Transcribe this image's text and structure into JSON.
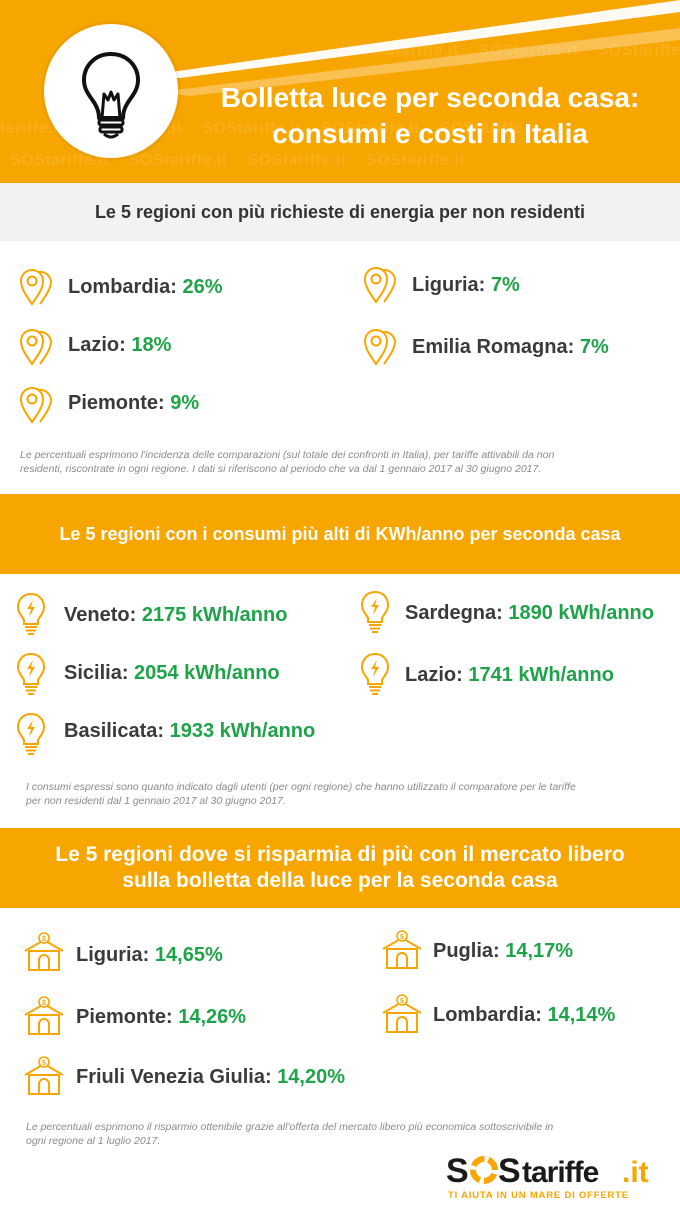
{
  "header": {
    "title_line1": "Bolletta luce per seconda casa:",
    "title_line2": "consumi e costi in Italia",
    "bulb_icon": "lightbulb-icon"
  },
  "section1": {
    "heading": "Le 5 regioni con più richieste di energia per non residenti",
    "icon": "map-pin-icon",
    "items": [
      {
        "name": "Lombardia:",
        "value": "26%"
      },
      {
        "name": "Liguria:",
        "value": "7%"
      },
      {
        "name": "Lazio:",
        "value": "18%"
      },
      {
        "name": "Emilia Romagna:",
        "value": "7%"
      },
      {
        "name": "Piemonte:",
        "value": "9%"
      }
    ],
    "note_line1": "Le percentuali esprimono l'incidenza delle comparazioni (sul totale dei confronti in Italia), per tariffe attivabili da non",
    "note_line2": "residenti, riscontrate in ogni regione. I dati si riferiscono al periodo che va dal 1 gennaio 2017 al 30 giugno 2017."
  },
  "section2": {
    "heading": "Le 5 regioni con i consumi più alti di KWh/anno per seconda casa",
    "icon": "energy-bulb-icon",
    "items": [
      {
        "name": "Veneto:",
        "value": "2175 kWh/anno"
      },
      {
        "name": "Sardegna:",
        "value": "1890 kWh/anno"
      },
      {
        "name": "Sicilia:",
        "value": "2054 kWh/anno"
      },
      {
        "name": "Lazio:",
        "value": "1741 kWh/anno"
      },
      {
        "name": "Basilicata:",
        "value": "1933 kWh/anno"
      }
    ],
    "note_line1": "I consumi espressi sono quanto indicato dagli utenti (per ogni regione) che hanno utilizzato il comparatore per le tariffe",
    "note_line2": "per non residenti dal 1 gennaio 2017 al 30 giugno 2017."
  },
  "section3": {
    "heading_line1": "Le 5 regioni dove si risparmia di più con il mercato libero",
    "heading_line2": "sulla bolletta della luce per la seconda casa",
    "icon": "house-savings-icon",
    "items": [
      {
        "name": "Liguria:",
        "value": "14,65%"
      },
      {
        "name": "Puglia:",
        "value": "14,17%"
      },
      {
        "name": "Piemonte:",
        "value": "14,26%"
      },
      {
        "name": "Lombardia:",
        "value": "14,14%"
      },
      {
        "name": "Friuli Venezia Giulia:",
        "value": "14,20%"
      }
    ],
    "note_line1": "Le percentuali esprimono il risparmio ottenibile grazie  all'offerta del mercato libero più economica sottoscrivibile in",
    "note_line2": "ogni regione al 1 luglio 2017."
  },
  "footer": {
    "logo_text": "SOStariffe.it",
    "tagline": "TI AIUTA IN UN MARE DI OFFERTE"
  },
  "colors": {
    "orange": "#f7a600",
    "green": "#1fa34a",
    "grey_bar": "#f2f2f2"
  }
}
